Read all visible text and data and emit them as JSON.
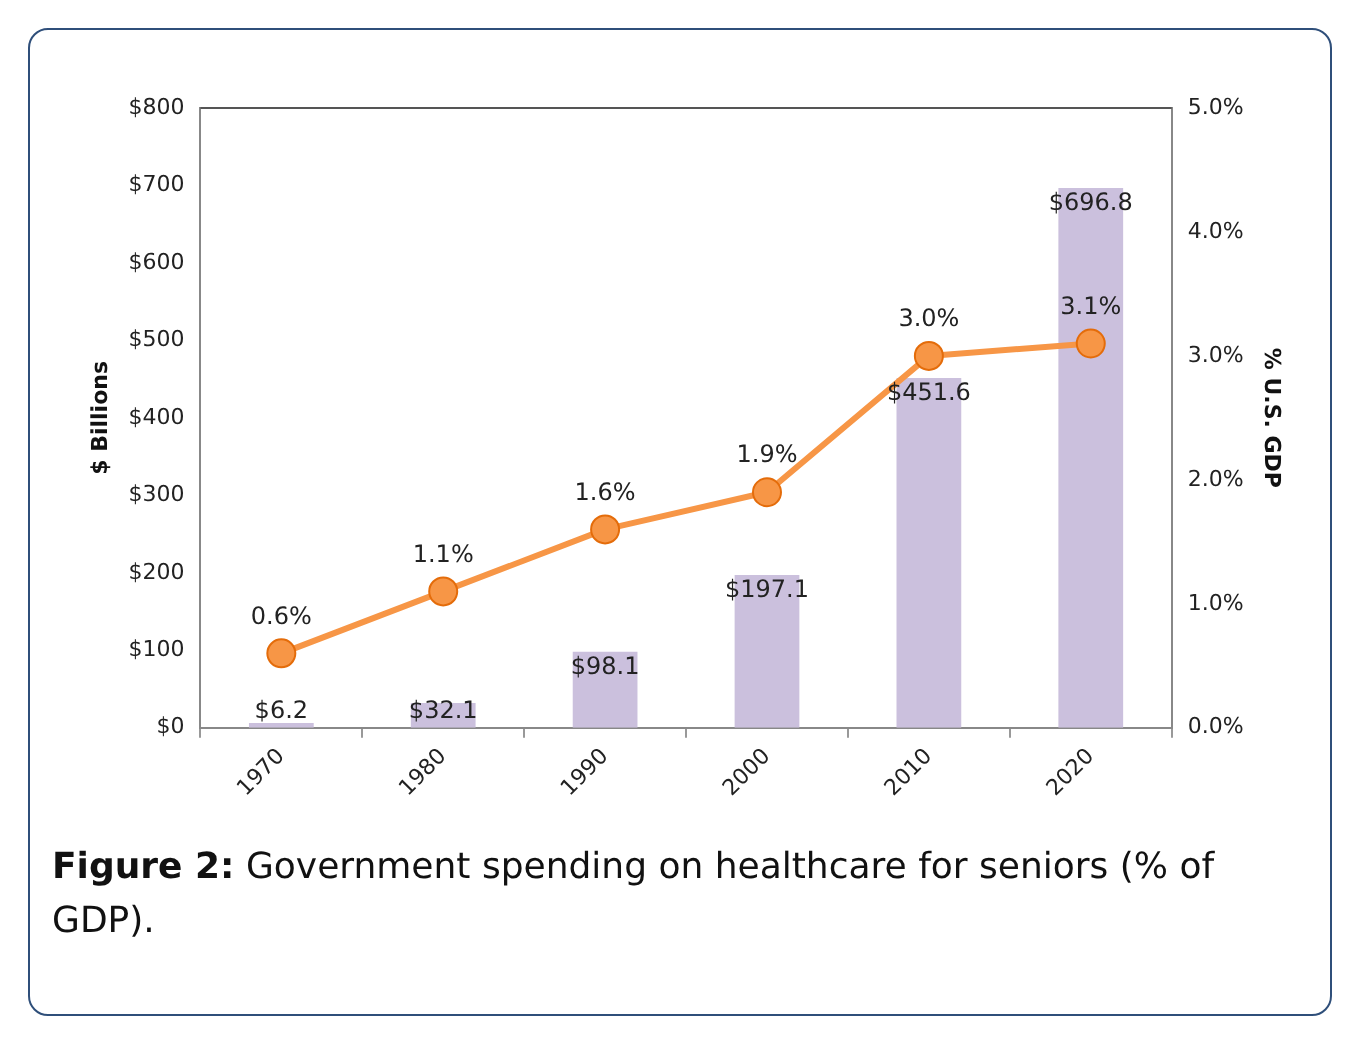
{
  "chart_data": {
    "type": "bar",
    "ylabel": "$ Billions",
    "y2label": "% U.S. GDP",
    "categories": [
      "1970",
      "1980",
      "1990",
      "2000",
      "2010",
      "2020"
    ],
    "series": [
      {
        "color": "#cbc0dd",
        "values": [
          6.2,
          32.1,
          98.1,
          197.1,
          451.6,
          696.8
        ],
        "value_labels": [
          "$6.2",
          "$32.1",
          "$98.1",
          "$197.1",
          "$451.6",
          "$696.8"
        ]
      },
      {
        "type": "line",
        "axis": "y2",
        "color": "#f79646",
        "marker": "circle",
        "values": [
          0.6,
          1.1,
          1.6,
          1.9,
          3.0,
          3.1
        ],
        "value_labels": [
          "0.6%",
          "1.1%",
          "1.6%",
          "1.9%",
          "3.0%",
          "3.1%"
        ]
      }
    ],
    "ylim": [
      0,
      800
    ],
    "yticks": [
      {
        "value": 0,
        "label": "$0"
      },
      {
        "value": 100,
        "label": "$100"
      },
      {
        "value": 200,
        "label": "$200"
      },
      {
        "value": 300,
        "label": "$300"
      },
      {
        "value": 400,
        "label": "$400"
      },
      {
        "value": 500,
        "label": "$500"
      },
      {
        "value": 600,
        "label": "$600"
      },
      {
        "value": 700,
        "label": "$700"
      },
      {
        "value": 800,
        "label": "$800"
      }
    ],
    "y2lim": [
      0,
      5
    ],
    "y2ticks": [
      {
        "value": 0,
        "label": "0.0%"
      },
      {
        "value": 1,
        "label": "1.0%"
      },
      {
        "value": 2,
        "label": "2.0%"
      },
      {
        "value": 3,
        "label": "3.0%"
      },
      {
        "value": 4,
        "label": "4.0%"
      },
      {
        "value": 5,
        "label": "5.0%"
      }
    ],
    "grid": false,
    "legend": false,
    "annotations": [
      "Figure 2: Government spending on healthcare for seniors (% of GDP)."
    ]
  }
}
